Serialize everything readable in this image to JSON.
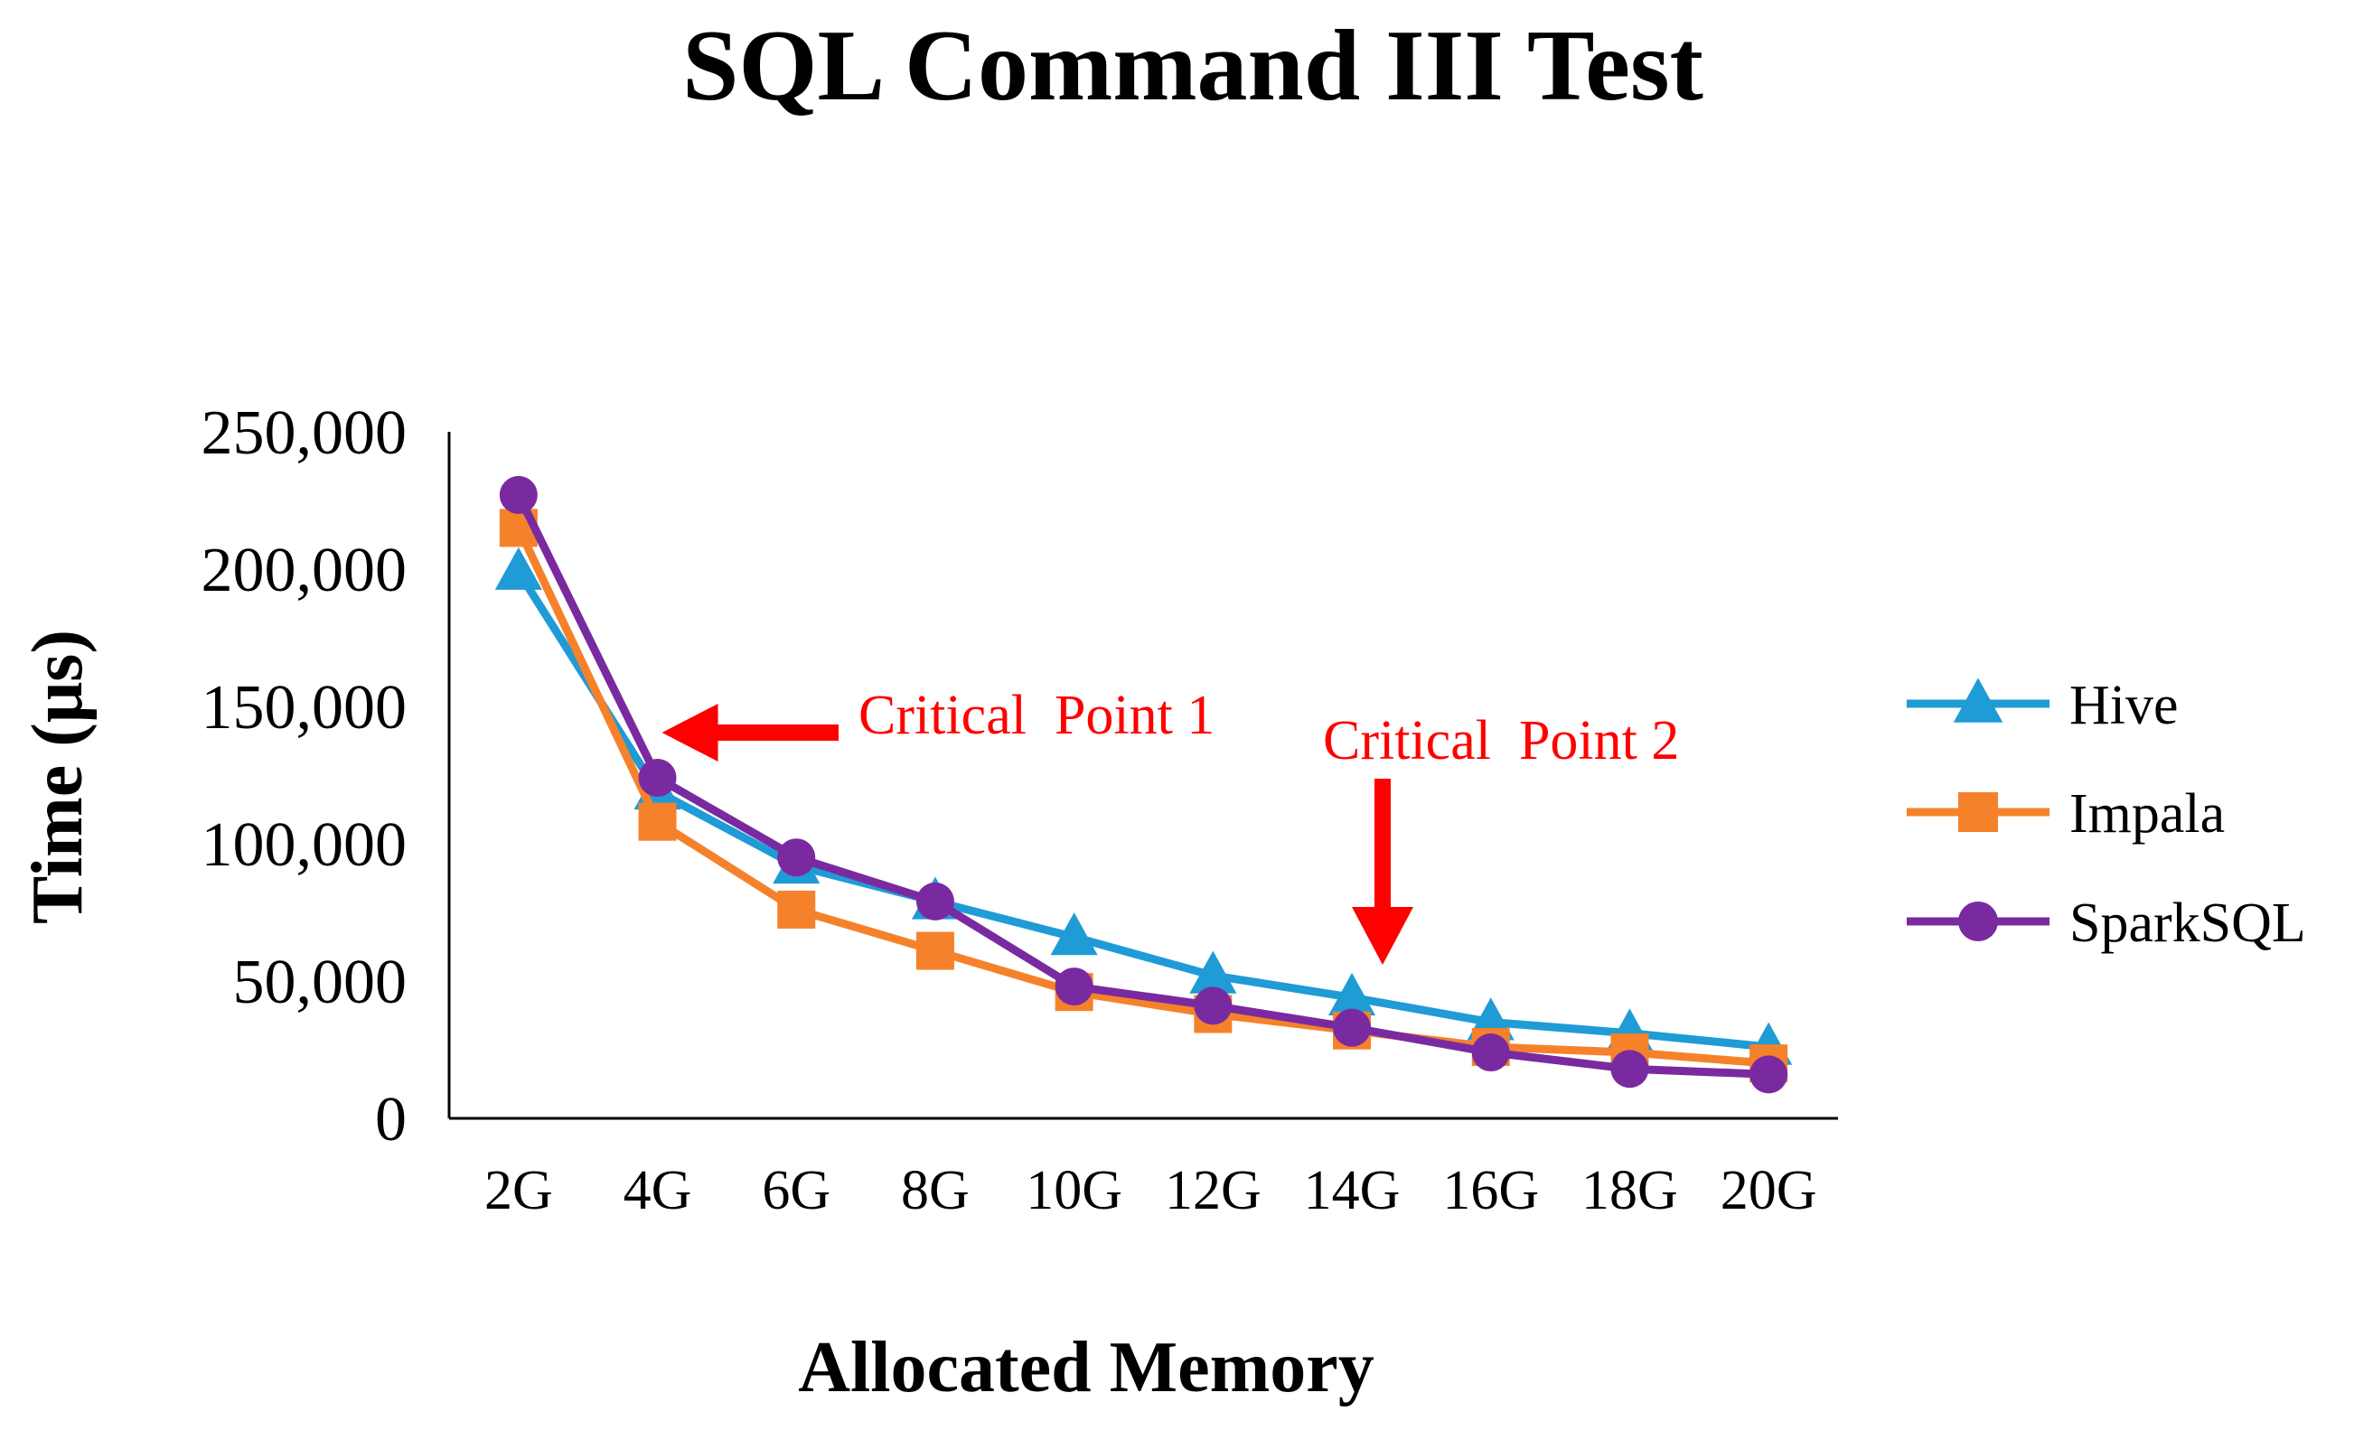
{
  "chart_data": {
    "type": "line",
    "title": "SQL Command III Test",
    "xlabel": "Allocated Memory",
    "ylabel": "Time (μs)",
    "categories": [
      "2G",
      "4G",
      "6G",
      "8G",
      "10G",
      "12G",
      "14G",
      "16G",
      "18G",
      "20G"
    ],
    "ylim": [
      0,
      250000
    ],
    "yticks": [
      0,
      50000,
      100000,
      150000,
      200000,
      250000
    ],
    "ytick_labels": [
      "0",
      "50,000",
      "100,000",
      "150,000",
      "200,000",
      "250,000"
    ],
    "grid": false,
    "legend_position": "right",
    "series": [
      {
        "name": "Hive",
        "color": "#1f9bd6",
        "marker": "triangle",
        "values": [
          199000,
          119000,
          92000,
          79000,
          66000,
          52000,
          44000,
          35000,
          31000,
          26000
        ]
      },
      {
        "name": "Impala",
        "color": "#f5822a",
        "marker": "square",
        "values": [
          215000,
          108000,
          76000,
          61000,
          46000,
          38000,
          32000,
          26000,
          24000,
          20000
        ]
      },
      {
        "name": "SparkSQL",
        "color": "#7a2aa0",
        "marker": "circle",
        "values": [
          227000,
          124000,
          95000,
          79000,
          48000,
          41000,
          33000,
          24000,
          18000,
          16000
        ]
      }
    ],
    "annotations": [
      {
        "text": "Critical  Point 1",
        "color": "#ff0000",
        "target_category": "4G",
        "arrow": "left"
      },
      {
        "text": "Critical  Point 2",
        "color": "#ff0000",
        "target_category": "14G",
        "arrow": "down"
      }
    ]
  }
}
